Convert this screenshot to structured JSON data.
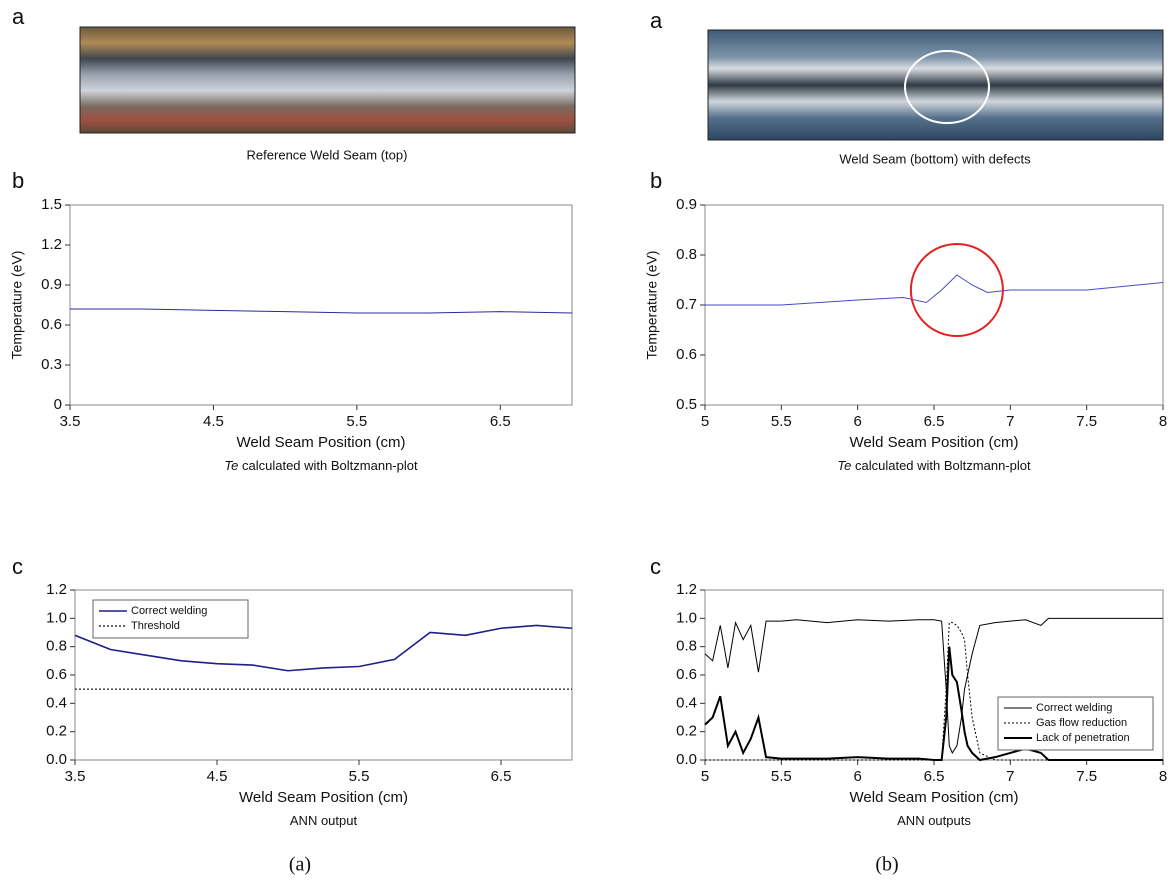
{
  "images": [
    {
      "label": "a",
      "caption": "Reference Weld Seam (top)"
    },
    {
      "label": "a",
      "caption": "Weld Seam (bottom) with defects"
    }
  ],
  "figure_labels": [
    "(a)",
    "(b)"
  ],
  "chart_data": [
    {
      "type": "line",
      "label": "b",
      "xlabel": "Weld Seam Position (cm)",
      "ylabel": "Temperature (eV)",
      "caption": [
        "Te",
        " calculated with Boltzmann-plot"
      ],
      "x": [
        3.5,
        4,
        4.5,
        5,
        5.5,
        6,
        6.5,
        7
      ],
      "series": [
        {
          "color": "#2b2b9a",
          "width": 1,
          "values": [
            0.72,
            0.72,
            0.71,
            0.7,
            0.69,
            0.69,
            0.7,
            0.69
          ]
        }
      ],
      "xlim": [
        3.5,
        7
      ],
      "xticks": [
        3.5,
        4.5,
        5.5,
        6.5
      ],
      "ylim": [
        0,
        1.5
      ],
      "yticks": [
        0,
        0.3,
        0.6,
        0.9,
        1.2,
        1.5
      ]
    },
    {
      "type": "line",
      "label": "b",
      "xlabel": "Weld Seam Position (cm)",
      "ylabel": "Temperature (eV)",
      "caption": [
        "Te",
        " calculated with Boltzmann-plot"
      ],
      "x": [
        5,
        5.5,
        6,
        6.3,
        6.45,
        6.55,
        6.65,
        6.75,
        6.85,
        7,
        7.5,
        8
      ],
      "series": [
        {
          "color": "#4a4ac0",
          "width": 1,
          "values": [
            0.7,
            0.7,
            0.71,
            0.715,
            0.705,
            0.73,
            0.76,
            0.74,
            0.725,
            0.73,
            0.73,
            0.745
          ]
        }
      ],
      "xlim": [
        5,
        8
      ],
      "xticks": [
        5,
        5.5,
        6,
        6.5,
        7,
        7.5,
        8
      ],
      "ylim": [
        0.5,
        0.9
      ],
      "yticks": [
        0.5,
        0.6,
        0.7,
        0.8,
        0.9
      ],
      "highlight_color": "#e52020"
    },
    {
      "type": "line",
      "label": "c",
      "xlabel": "Weld Seam Position (cm)",
      "caption": [
        "ANN output"
      ],
      "x": [
        3.5,
        3.75,
        4,
        4.25,
        4.5,
        4.75,
        5,
        5.25,
        5.5,
        5.75,
        6,
        6.25,
        6.5,
        6.75,
        7
      ],
      "series": [
        {
          "name": "Correct welding",
          "color": "#1f1f8a",
          "width": 1.6,
          "values": [
            0.88,
            0.78,
            0.74,
            0.7,
            0.68,
            0.67,
            0.63,
            0.65,
            0.66,
            0.71,
            0.9,
            0.88,
            0.93,
            0.95,
            0.93
          ]
        },
        {
          "name": "Threshold",
          "color": "#333333",
          "width": 1.4,
          "style": "dotted",
          "values": [
            0.5,
            0.5,
            0.5,
            0.5,
            0.5,
            0.5,
            0.5,
            0.5,
            0.5,
            0.5,
            0.5,
            0.5,
            0.5,
            0.5,
            0.5
          ]
        }
      ],
      "legend": "top-left",
      "xlim": [
        3.5,
        7
      ],
      "xticks": [
        3.5,
        4.5,
        5.5,
        6.5
      ],
      "ylim": [
        0,
        1.2
      ],
      "yticks": [
        {
          "value": 0,
          "label": "0.0"
        },
        0.2,
        0.4,
        0.6,
        0.8,
        {
          "value": 1,
          "label": "1.0"
        },
        1.2
      ]
    },
    {
      "type": "line",
      "label": "c",
      "xlabel": "Weld Seam Position (cm)",
      "caption": [
        "ANN outputs"
      ],
      "x": [
        5.0,
        5.05,
        5.1,
        5.15,
        5.2,
        5.25,
        5.3,
        5.35,
        5.4,
        5.5,
        5.6,
        5.8,
        6.0,
        6.2,
        6.4,
        6.5,
        6.55,
        6.58,
        6.6,
        6.62,
        6.65,
        6.68,
        6.7,
        6.72,
        6.75,
        6.8,
        6.9,
        7.0,
        7.1,
        7.2,
        7.25,
        7.3,
        7.5,
        8.0
      ],
      "series": [
        {
          "name": "Correct welding",
          "color": "#000000",
          "width": 1,
          "values": [
            0.75,
            0.7,
            0.95,
            0.65,
            0.97,
            0.85,
            0.95,
            0.62,
            0.98,
            0.98,
            0.99,
            0.97,
            0.99,
            0.98,
            0.99,
            0.99,
            0.98,
            0.5,
            0.1,
            0.05,
            0.1,
            0.3,
            0.5,
            0.6,
            0.75,
            0.95,
            0.97,
            0.98,
            0.99,
            0.95,
            1.0,
            1.0,
            1.0,
            1.0
          ]
        },
        {
          "name": "Gas flow reduction",
          "color": "#000000",
          "width": 1,
          "style": "dotted",
          "values": [
            0,
            0,
            0,
            0,
            0,
            0,
            0,
            0,
            0,
            0,
            0,
            0,
            0,
            0,
            0,
            0,
            0,
            0.5,
            0.97,
            0.97,
            0.95,
            0.9,
            0.85,
            0.6,
            0.3,
            0.05,
            0,
            0,
            0,
            0,
            0,
            0,
            0,
            0
          ]
        },
        {
          "name": "Lack of penetration",
          "color": "#000000",
          "width": 2,
          "values": [
            0.25,
            0.3,
            0.45,
            0.1,
            0.2,
            0.05,
            0.15,
            0.3,
            0.02,
            0.01,
            0.01,
            0.01,
            0.02,
            0.01,
            0.01,
            0,
            0,
            0.3,
            0.8,
            0.6,
            0.55,
            0.35,
            0.2,
            0.1,
            0.05,
            0,
            0.02,
            0.05,
            0.08,
            0.05,
            0,
            0,
            0,
            0
          ]
        }
      ],
      "legend": "bottom-right",
      "xlim": [
        5,
        8
      ],
      "xticks": [
        5,
        5.5,
        6,
        6.5,
        7,
        7.5,
        8
      ],
      "ylim": [
        0,
        1.2
      ],
      "yticks": [
        {
          "value": 0,
          "label": "0.0"
        },
        0.2,
        0.4,
        0.6,
        0.8,
        {
          "value": 1,
          "label": "1.0"
        },
        1.2
      ]
    }
  ]
}
